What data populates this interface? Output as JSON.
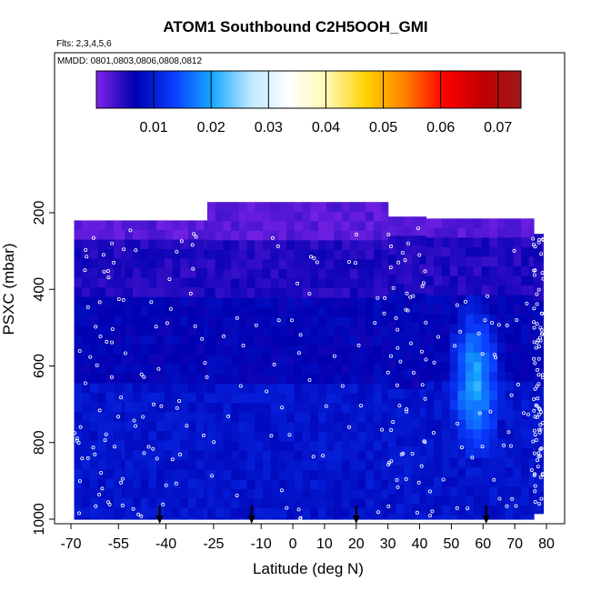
{
  "chart_data": {
    "type": "heatmap",
    "title": "ATOM1 Southbound C2H5OOH_GMI",
    "flights_note": "Flts: 2,3,4,5,6",
    "dates_note": "MMDD: 0801,0803,0806,0808,0812",
    "xlabel": "Latitude (deg N)",
    "ylabel": "PSXC (mbar)",
    "xlim": [
      -70,
      80
    ],
    "ylim": [
      1000,
      200
    ],
    "x_ticks": [
      -70,
      -55,
      -40,
      -25,
      -10,
      0,
      10,
      20,
      30,
      40,
      50,
      60,
      70,
      80
    ],
    "y_ticks": [
      200,
      400,
      600,
      800,
      1000
    ],
    "colorbar": {
      "range": [
        0.0,
        0.074
      ],
      "ticks": [
        0.01,
        0.02,
        0.03,
        0.04,
        0.05,
        0.06,
        0.07
      ],
      "tick_labels": [
        "0.01",
        "0.02",
        "0.03",
        "0.04",
        "0.05",
        "0.06",
        "0.07"
      ],
      "colors": [
        "#7f24e8",
        "#0000b0",
        "#0a3cff",
        "#16a8ff",
        "#bfe8ff",
        "#ffffff",
        "#fff8b0",
        "#ffd000",
        "#ff8000",
        "#ff0000",
        "#c00000",
        "#a01818"
      ]
    },
    "lat_bands": [
      {
        "lat_range": [
          -69,
          -53
        ],
        "top": 220,
        "bottom": 1000
      },
      {
        "lat_range": [
          -53,
          -27
        ],
        "top": 220,
        "bottom": 1000
      },
      {
        "lat_range": [
          -27,
          30
        ],
        "top": 172,
        "bottom": 1000
      },
      {
        "lat_range": [
          30,
          42
        ],
        "top": 210,
        "bottom": 1000
      },
      {
        "lat_range": [
          42,
          76
        ],
        "top": 215,
        "bottom": 1000
      },
      {
        "lat_range": [
          76,
          79
        ],
        "top": 255,
        "bottom": 985
      }
    ],
    "value_field_description_levels": [
      {
        "p_range": [
          172,
          260
        ],
        "value": 0.002
      },
      {
        "p_range": [
          260,
          420
        ],
        "value": 0.005
      },
      {
        "p_range": [
          420,
          650
        ],
        "value": 0.007
      },
      {
        "p_range": [
          650,
          1000
        ],
        "value": 0.009
      }
    ],
    "enhanced_region": {
      "lat_range": [
        49,
        66
      ],
      "p_range": [
        420,
        850
      ],
      "value_max": 0.022
    },
    "arrow_latitudes": [
      -42,
      -13,
      20,
      61
    ]
  }
}
